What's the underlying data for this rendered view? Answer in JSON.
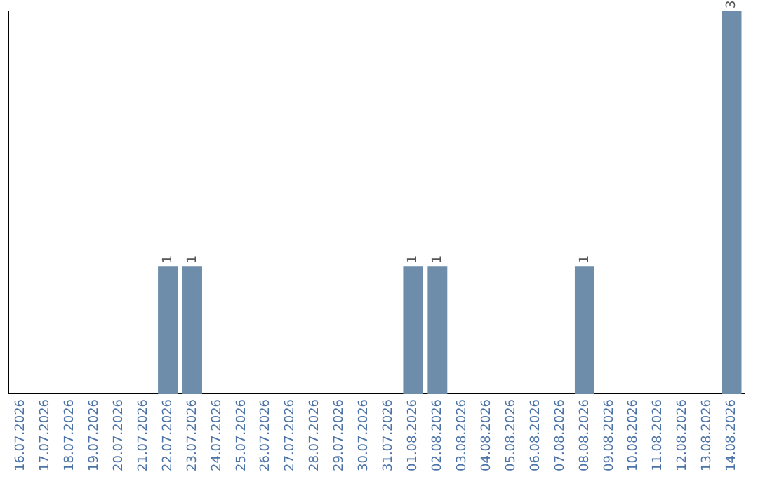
{
  "chart_data": {
    "type": "bar",
    "categories": [
      "16.07.2026",
      "17.07.2026",
      "18.07.2026",
      "19.07.2026",
      "20.07.2026",
      "21.07.2026",
      "22.07.2026",
      "23.07.2026",
      "24.07.2026",
      "25.07.2026",
      "26.07.2026",
      "27.07.2026",
      "28.07.2026",
      "29.07.2026",
      "30.07.2026",
      "31.07.2026",
      "01.08.2026",
      "02.08.2026",
      "03.08.2026",
      "04.08.2026",
      "05.08.2026",
      "06.08.2026",
      "07.08.2026",
      "08.08.2026",
      "09.08.2026",
      "10.08.2026",
      "11.08.2026",
      "12.08.2026",
      "13.08.2026",
      "14.08.2026"
    ],
    "values": [
      0,
      0,
      0,
      0,
      0,
      0,
      1,
      1,
      0,
      0,
      0,
      0,
      0,
      0,
      0,
      0,
      1,
      1,
      0,
      0,
      0,
      0,
      0,
      1,
      0,
      0,
      0,
      0,
      0,
      3
    ],
    "value_labels": [
      null,
      null,
      null,
      null,
      null,
      null,
      "1",
      "1",
      null,
      null,
      null,
      null,
      null,
      null,
      null,
      null,
      "1",
      "1",
      null,
      null,
      null,
      null,
      null,
      "1",
      null,
      null,
      null,
      null,
      null,
      "3"
    ],
    "color": "#6d8dab",
    "grid": false,
    "legend": false,
    "tick_labels": "x"
  }
}
